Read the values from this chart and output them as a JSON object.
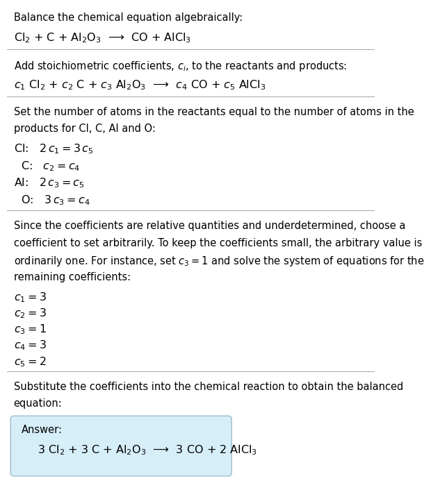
{
  "title": "Balance the chemical equation algebraically:",
  "equation_line": "Cl$_2$ + C + Al$_2$O$_3$  ⟶  CO + AlCl$_3$",
  "section2_header": "Add stoichiometric coefficients, $c_i$, to the reactants and products:",
  "section2_eq": "$c_1$ Cl$_2$ + $c_2$ C + $c_3$ Al$_2$O$_3$  ⟶  $c_4$ CO + $c_5$ AlCl$_3$",
  "section3_header_lines": [
    "Set the number of atoms in the reactants equal to the number of atoms in the",
    "products for Cl, C, Al and O:"
  ],
  "section3_lines": [
    "Cl:   $2\\,c_1 = 3\\,c_5$",
    "  C:   $c_2 = c_4$",
    "Al:   $2\\,c_3 = c_5$",
    "  O:   $3\\,c_3 = c_4$"
  ],
  "section4_header_lines": [
    "Since the coefficients are relative quantities and underdetermined, choose a",
    "coefficient to set arbitrarily. To keep the coefficients small, the arbitrary value is",
    "ordinarily one. For instance, set $c_3 = 1$ and solve the system of equations for the",
    "remaining coefficients:"
  ],
  "section4_lines": [
    "$c_1 = 3$",
    "$c_2 = 3$",
    "$c_3 = 1$",
    "$c_4 = 3$",
    "$c_5 = 2$"
  ],
  "section5_header_lines": [
    "Substitute the coefficients into the chemical reaction to obtain the balanced",
    "equation:"
  ],
  "answer_label": "Answer:",
  "answer_eq": "$3$ Cl$_2$ + $3$ C + Al$_2$O$_3$  ⟶  $3$ CO + $2$ AlCl$_3$",
  "bg_color": "#ffffff",
  "text_color": "#000000",
  "answer_box_facecolor": "#d6eef8",
  "answer_box_edgecolor": "#9bbfcc",
  "line_color": "#aaaaaa",
  "font_size": 10.5,
  "eq_font_size": 11.5
}
